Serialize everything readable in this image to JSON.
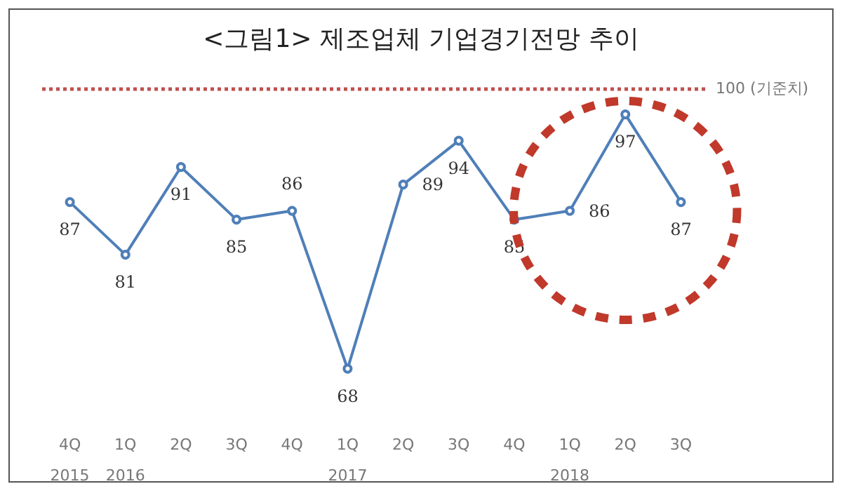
{
  "chart_data": {
    "type": "line",
    "title": "<그림1> 제조업체 기업경기전망 추이",
    "categories": [
      "4Q\n2015",
      "1Q\n2016",
      "2Q",
      "3Q",
      "4Q",
      "1Q\n2017",
      "2Q",
      "3Q",
      "4Q",
      "1Q\n2018",
      "2Q",
      "3Q"
    ],
    "series": [
      {
        "color": "#4f7fb8",
        "values": [
          87,
          81,
          91,
          85,
          86,
          68,
          89,
          94,
          85,
          86,
          97,
          87
        ]
      }
    ],
    "data_labels": true,
    "marker": "circle",
    "line_style": "solid",
    "tick_labels": "x",
    "ref_lines": [
      {
        "axis": "y",
        "value": 100,
        "label": "100 (기준치)",
        "color": "#c0504d",
        "line_style": "dotted"
      }
    ]
  }
}
